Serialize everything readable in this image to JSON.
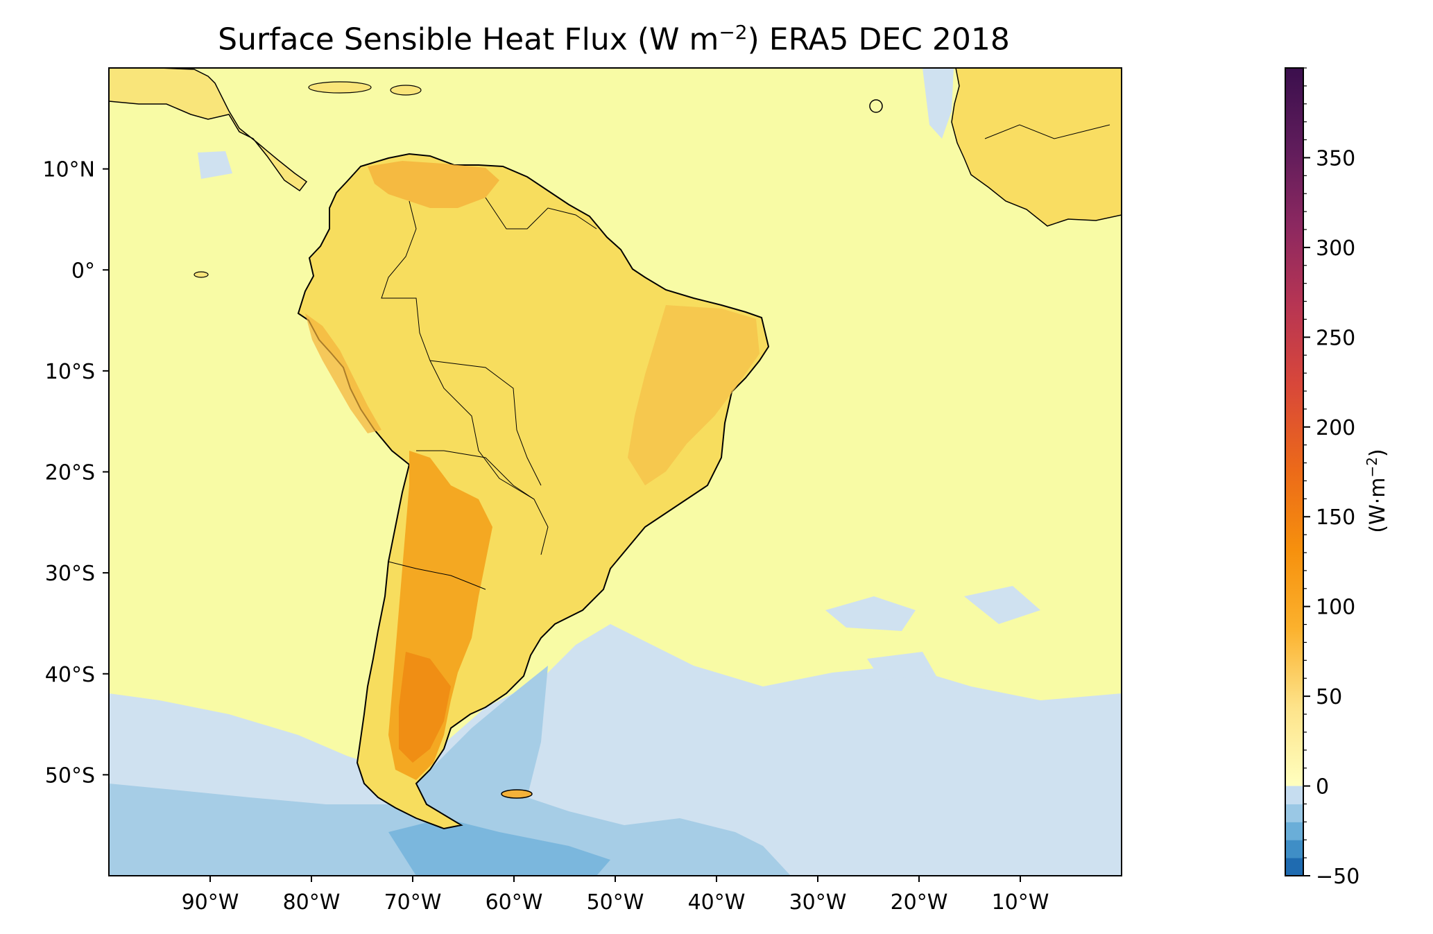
{
  "title": {
    "text_before": "Surface Sensible Heat Flux (W m",
    "superscript": "−2",
    "text_after": ") ERA5 DEC 2018"
  },
  "map": {
    "region": "South America and tropical/south Atlantic",
    "projection": "PlateCarree",
    "lon_range": [
      -100,
      0
    ],
    "lat_range": [
      -60,
      20
    ],
    "lon_ticks": [
      {
        "value": -90,
        "label": "90°W"
      },
      {
        "value": -80,
        "label": "80°W"
      },
      {
        "value": -70,
        "label": "70°W"
      },
      {
        "value": -60,
        "label": "60°W"
      },
      {
        "value": -50,
        "label": "50°W"
      },
      {
        "value": -40,
        "label": "40°W"
      },
      {
        "value": -30,
        "label": "30°W"
      },
      {
        "value": -20,
        "label": "20°W"
      },
      {
        "value": -10,
        "label": "10°W"
      }
    ],
    "lat_ticks": [
      {
        "value": 10,
        "label": "10°N"
      },
      {
        "value": 0,
        "label": "0°"
      },
      {
        "value": -10,
        "label": "10°S"
      },
      {
        "value": -20,
        "label": "20°S"
      },
      {
        "value": -30,
        "label": "30°S"
      },
      {
        "value": -40,
        "label": "40°S"
      },
      {
        "value": -50,
        "label": "50°S"
      }
    ],
    "field_colors": {
      "ocean_low": "#f8fba5",
      "ocean_negative": "#cfe1f0",
      "ocean_negative_strong": "#a6cde6",
      "land_moderate": "#f9dd62",
      "land_high": "#f6a81c",
      "land_very_high": "#f08a10",
      "coast": "#000000"
    }
  },
  "colorbar": {
    "label_before": "(W·m",
    "label_sup": "−2",
    "label_after": ")",
    "range": [
      -50,
      400
    ],
    "ticks": [
      {
        "value": -50,
        "label": "−50"
      },
      {
        "value": 0,
        "label": "0"
      },
      {
        "value": 50,
        "label": "50"
      },
      {
        "value": 100,
        "label": "100"
      },
      {
        "value": 150,
        "label": "150"
      },
      {
        "value": 200,
        "label": "200"
      },
      {
        "value": 250,
        "label": "250"
      },
      {
        "value": 300,
        "label": "300"
      },
      {
        "value": 350,
        "label": "350"
      }
    ],
    "negative_colors": [
      "#1f6bb0",
      "#3f8ec6",
      "#6aaed8",
      "#9ac8e5",
      "#c6ddf0"
    ],
    "positive_colors": [
      "#ffffbf",
      "#fde38a",
      "#fbb12d",
      "#f6900d",
      "#ec6a19",
      "#d8473a",
      "#b73553",
      "#8c2860",
      "#5f1c5b",
      "#3b0f4d"
    ]
  }
}
